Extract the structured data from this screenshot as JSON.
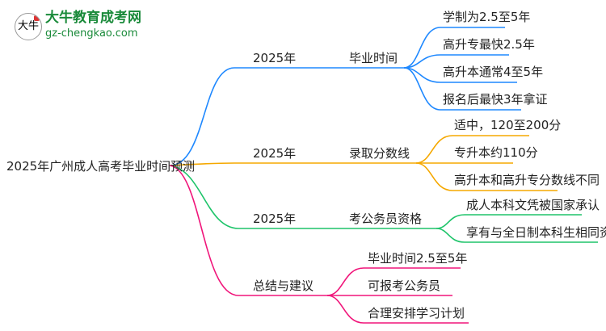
{
  "logo": {
    "title": "大牛教育成考网",
    "url": "gz-chengkao.com",
    "mark": "大牛"
  },
  "root": "2025年广州成人高考毕业时间预测",
  "colors": {
    "blue": "#1e88ff",
    "orange": "#f5a800",
    "green": "#1ec46a",
    "pink": "#f0157a"
  },
  "branches": [
    {
      "year": "2025年",
      "topic": "毕业时间",
      "leaves": [
        "学制为2.5至5年",
        "高升专最快2.5年",
        "高升本通常4至5年",
        "报名后最快3年拿证"
      ]
    },
    {
      "year": "2025年",
      "topic": "录取分数线",
      "leaves": [
        "适中，120至200分",
        "专升本约110分",
        "高升本和高升专分数线不同"
      ]
    },
    {
      "year": "2025年",
      "topic": "考公务员资格",
      "leaves": [
        "成人本科文凭被国家承认",
        "享有与全日制本科生相同资格"
      ]
    },
    {
      "topic": "总结与建议",
      "leaves": [
        "毕业时间2.5至5年",
        "可报考公务员",
        "合理安排学习计划"
      ]
    }
  ]
}
